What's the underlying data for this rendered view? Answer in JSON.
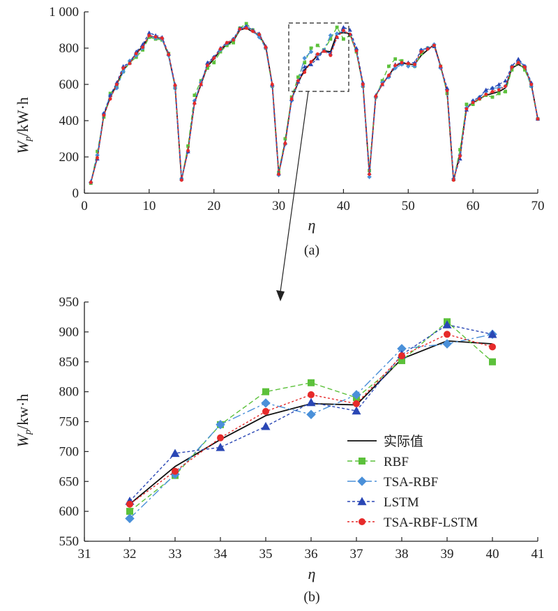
{
  "colors": {
    "actual": "#111111",
    "rbf": "#5cc13b",
    "tsa_rbf": "#4a90d9",
    "lstm": "#2a47b5",
    "tsa_rbf_lstm": "#e62a2a"
  },
  "chart_data": [
    {
      "type": "line",
      "caption": "(a)",
      "xlabel": "η",
      "ylabel": {
        "main": "W",
        "sub": "p",
        "unit": "/kW·h"
      },
      "xlim": [
        0,
        70
      ],
      "ylim": [
        0,
        1000
      ],
      "xticks": [
        "0",
        "10",
        "20",
        "30",
        "40",
        "50",
        "60",
        "70"
      ],
      "yticks": [
        "0",
        "200",
        "400",
        "600",
        "800",
        "1 000"
      ],
      "x": [
        1,
        2,
        3,
        4,
        5,
        6,
        7,
        8,
        9,
        10,
        11,
        12,
        13,
        14,
        15,
        16,
        17,
        18,
        19,
        20,
        21,
        22,
        23,
        24,
        25,
        26,
        27,
        28,
        29,
        30,
        31,
        32,
        33,
        34,
        35,
        36,
        37,
        38,
        39,
        40,
        41,
        42,
        43,
        44,
        45,
        46,
        47,
        48,
        49,
        50,
        51,
        52,
        53,
        54,
        55,
        56,
        57,
        58,
        59,
        60,
        61,
        62,
        63,
        64,
        65,
        66,
        67,
        68,
        69,
        70
      ],
      "series": [
        {
          "name": "实际值",
          "values": [
            60,
            200,
            430,
            530,
            600,
            680,
            720,
            770,
            810,
            865,
            860,
            850,
            760,
            590,
            75,
            240,
            500,
            600,
            700,
            740,
            790,
            820,
            840,
            900,
            910,
            890,
            870,
            810,
            600,
            110,
            280,
            520,
            610,
            680,
            720,
            760,
            785,
            780,
            880,
            885,
            880,
            780,
            600,
            110,
            540,
            600,
            650,
            700,
            720,
            710,
            710,
            760,
            790,
            820,
            700,
            560,
            70,
            220,
            470,
            500,
            520,
            540,
            550,
            560,
            580,
            690,
            710,
            690,
            600,
            410
          ]
        },
        {
          "name": "RBF",
          "values": [
            55,
            230,
            420,
            550,
            590,
            670,
            720,
            750,
            790,
            860,
            850,
            845,
            770,
            580,
            78,
            260,
            540,
            620,
            690,
            720,
            780,
            815,
            830,
            910,
            935,
            900,
            870,
            800,
            590,
            115,
            300,
            530,
            640,
            720,
            800,
            815,
            790,
            850,
            915,
            850,
            870,
            780,
            590,
            125,
            530,
            620,
            700,
            740,
            730,
            710,
            700,
            770,
            800,
            810,
            700,
            550,
            75,
            240,
            490,
            490,
            520,
            540,
            530,
            550,
            560,
            680,
            720,
            680,
            590,
            410
          ]
        },
        {
          "name": "TSA-RBF",
          "values": [
            60,
            210,
            440,
            540,
            580,
            670,
            730,
            760,
            800,
            870,
            855,
            850,
            760,
            580,
            80,
            230,
            510,
            610,
            710,
            750,
            790,
            825,
            850,
            905,
            920,
            895,
            860,
            800,
            590,
            100,
            270,
            510,
            620,
            745,
            780,
            760,
            790,
            870,
            880,
            895,
            875,
            790,
            590,
            90,
            530,
            610,
            640,
            690,
            710,
            700,
            700,
            790,
            800,
            820,
            690,
            570,
            80,
            210,
            470,
            510,
            530,
            560,
            580,
            580,
            590,
            700,
            730,
            700,
            590,
            410
          ]
        },
        {
          "name": "LSTM",
          "values": [
            65,
            190,
            440,
            540,
            610,
            700,
            720,
            780,
            820,
            885,
            870,
            860,
            770,
            600,
            80,
            230,
            500,
            600,
            720,
            750,
            800,
            830,
            850,
            910,
            920,
            900,
            880,
            810,
            600,
            110,
            280,
            520,
            615,
            697,
            710,
            743,
            785,
            770,
            860,
            915,
            900,
            800,
            610,
            110,
            540,
            600,
            650,
            710,
            720,
            720,
            720,
            790,
            800,
            810,
            700,
            580,
            80,
            190,
            460,
            510,
            530,
            570,
            580,
            600,
            620,
            700,
            740,
            700,
            610,
            410
          ]
        },
        {
          "name": "TSA-RBF-LSTM",
          "values": [
            60,
            195,
            430,
            520,
            600,
            690,
            715,
            770,
            805,
            870,
            862,
            855,
            765,
            595,
            72,
            235,
            495,
            600,
            705,
            745,
            795,
            830,
            845,
            905,
            910,
            893,
            875,
            805,
            600,
            105,
            275,
            520,
            620,
            667,
            725,
            767,
            783,
            760,
            860,
            897,
            876,
            785,
            600,
            105,
            535,
            600,
            650,
            705,
            720,
            715,
            710,
            780,
            795,
            815,
            700,
            565,
            72,
            205,
            465,
            500,
            520,
            545,
            560,
            570,
            590,
            695,
            720,
            695,
            600,
            410
          ]
        }
      ]
    },
    {
      "type": "line",
      "caption": "(b)",
      "xlabel": "η",
      "ylabel": {
        "main": "W",
        "sub": "p",
        "unit": "/kw·h"
      },
      "xlim": [
        31,
        41
      ],
      "ylim": [
        550,
        950
      ],
      "xticks": [
        "31",
        "32",
        "33",
        "34",
        "35",
        "36",
        "37",
        "38",
        "39",
        "40",
        "41"
      ],
      "yticks": [
        "550",
        "600",
        "650",
        "700",
        "750",
        "800",
        "850",
        "900",
        "950"
      ],
      "x": [
        32,
        33,
        34,
        35,
        36,
        37,
        38,
        39,
        40
      ],
      "series": [
        {
          "name": "实际值",
          "values": [
            612,
            675,
            720,
            760,
            780,
            778,
            855,
            885,
            880
          ]
        },
        {
          "name": "RBF",
          "values": [
            600,
            660,
            745,
            800,
            815,
            790,
            852,
            917,
            850
          ]
        },
        {
          "name": "TSA-RBF",
          "values": [
            588,
            662,
            745,
            781,
            762,
            795,
            872,
            880,
            896
          ]
        },
        {
          "name": "LSTM",
          "values": [
            617,
            697,
            707,
            742,
            782,
            768,
            862,
            912,
            896
          ]
        },
        {
          "name": "TSA-RBF-LSTM",
          "values": [
            612,
            667,
            723,
            767,
            795,
            780,
            860,
            896,
            875
          ]
        }
      ]
    }
  ]
}
